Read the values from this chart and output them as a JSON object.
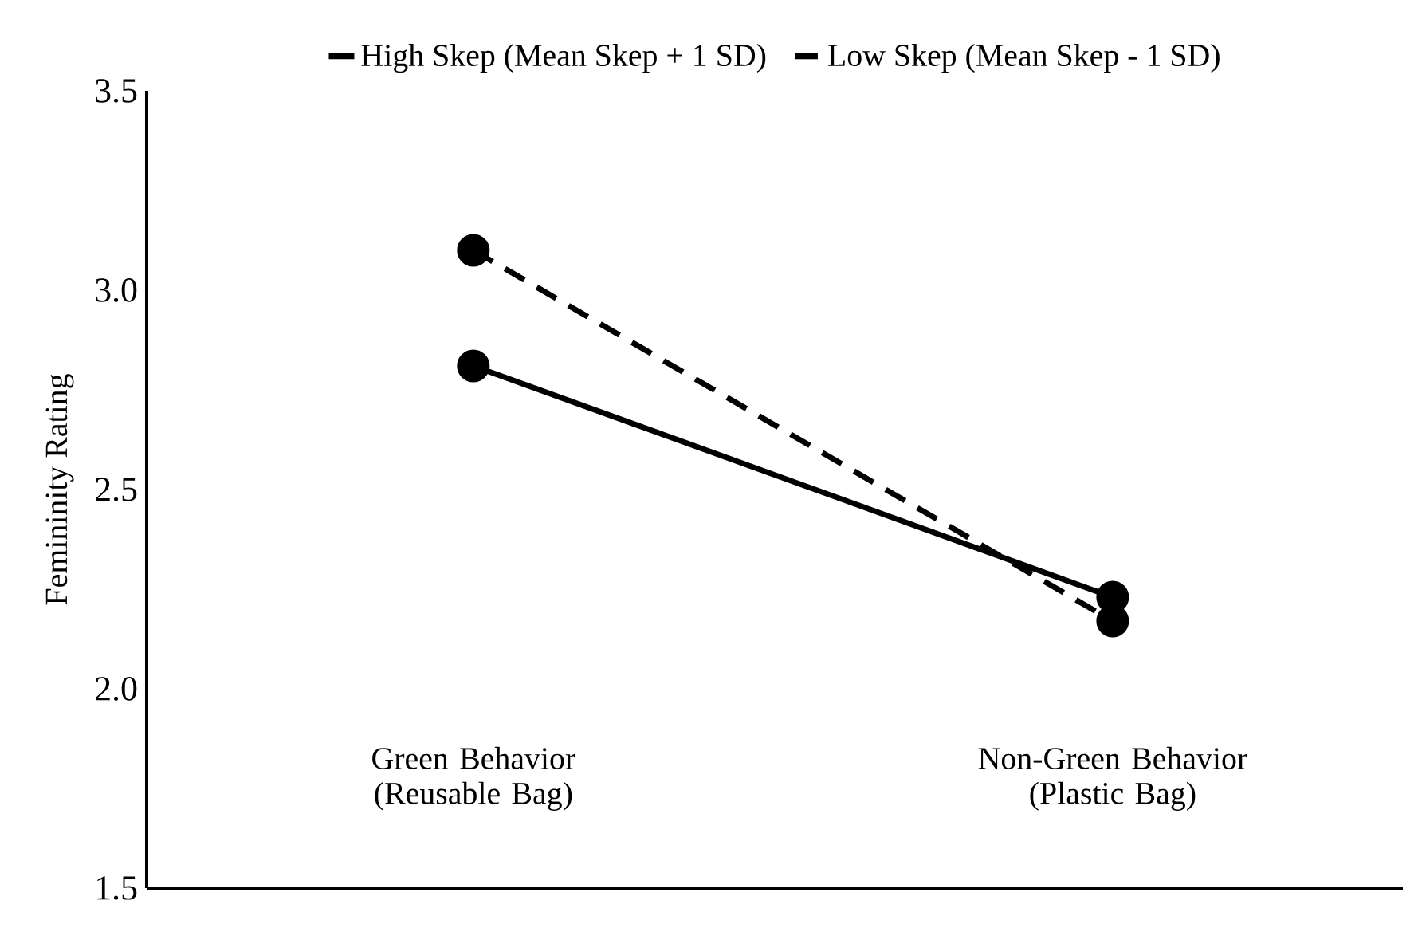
{
  "chart_data": {
    "type": "line",
    "ylabel": "Femininity Rating",
    "categories": [
      "Green Behavior (Reusable Bag)",
      "Non-Green Behavior (Plastic Bag)"
    ],
    "series": [
      {
        "name": "High Skep (Mean Skep + 1 SD)",
        "color": "#000000",
        "line_style": "solid",
        "values": [
          2.81,
          2.23
        ]
      },
      {
        "name": "Low Skep (Mean Skep - 1 SD)",
        "color": "#000000",
        "line_style": "dashed",
        "values": [
          3.1,
          2.17
        ]
      }
    ],
    "ylim": [
      1.5,
      3.5
    ],
    "yticks": [
      {
        "value": 1.5,
        "label": "1.5"
      },
      {
        "value": 2,
        "label": "2.0"
      },
      {
        "value": 2.5,
        "label": "2.5"
      },
      {
        "value": 3,
        "label": "3.0"
      },
      {
        "value": 3.5,
        "label": "3.5"
      }
    ],
    "marker": "circle",
    "legend": "top",
    "grid": false
  }
}
